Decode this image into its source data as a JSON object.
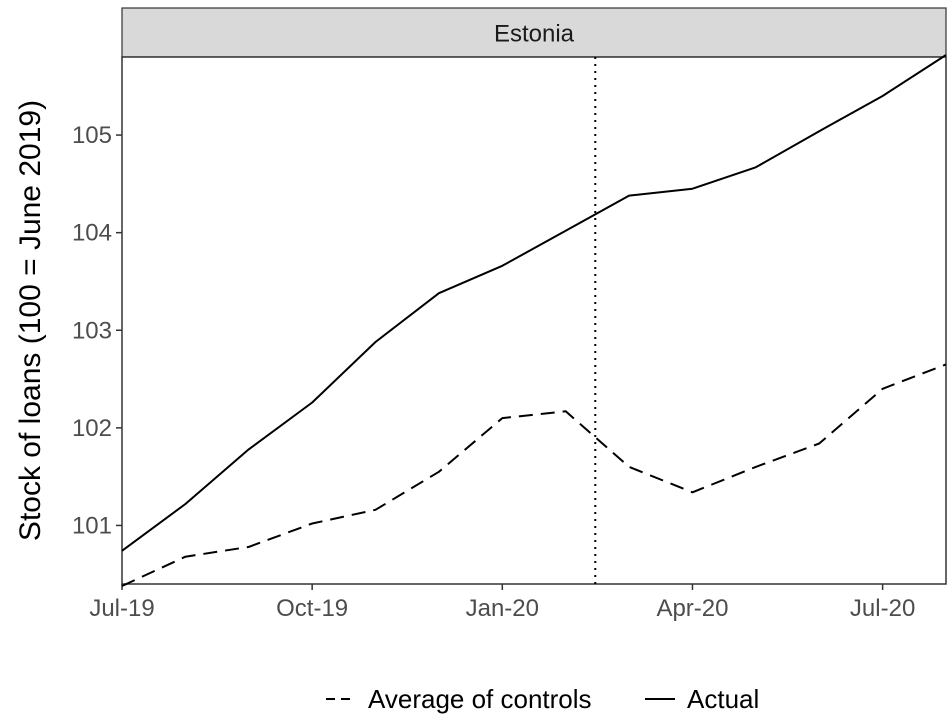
{
  "chart_data": {
    "type": "line",
    "facet_title": "Estonia",
    "ylabel": "Stock of loans (100 = June 2019)",
    "xlabel": "",
    "x": [
      "2019-07",
      "2019-08",
      "2019-09",
      "2019-10",
      "2019-11",
      "2019-12",
      "2020-01",
      "2020-02",
      "2020-03",
      "2020-04",
      "2020-05",
      "2020-06",
      "2020-07",
      "2020-08"
    ],
    "x_ticks": [
      {
        "x": "2019-07",
        "label": "Jul-19"
      },
      {
        "x": "2019-10",
        "label": "Oct-19"
      },
      {
        "x": "2020-01",
        "label": "Jan-20"
      },
      {
        "x": "2020-04",
        "label": "Apr-20"
      },
      {
        "x": "2020-07",
        "label": "Jul-20"
      }
    ],
    "y_ticks": [
      101,
      102,
      103,
      104,
      105
    ],
    "xlim": [
      "2019-07",
      "2020-08"
    ],
    "ylim": [
      100.4,
      105.8
    ],
    "vline": {
      "x": "2020-02-15",
      "style": "dotted"
    },
    "grid": false,
    "legend_position": "bottom",
    "series": [
      {
        "name": "Average of controls",
        "linestyle": "dashed",
        "color": "#000000",
        "values": [
          100.38,
          100.68,
          100.78,
          101.02,
          101.16,
          101.55,
          102.1,
          102.17,
          101.6,
          101.34,
          101.6,
          101.84,
          102.4,
          102.65
        ]
      },
      {
        "name": "Actual",
        "linestyle": "solid",
        "color": "#000000",
        "values": [
          100.74,
          101.22,
          101.78,
          102.26,
          102.88,
          103.38,
          103.66,
          104.02,
          104.38,
          104.45,
          104.67,
          105.04,
          105.4,
          105.82
        ]
      }
    ]
  }
}
